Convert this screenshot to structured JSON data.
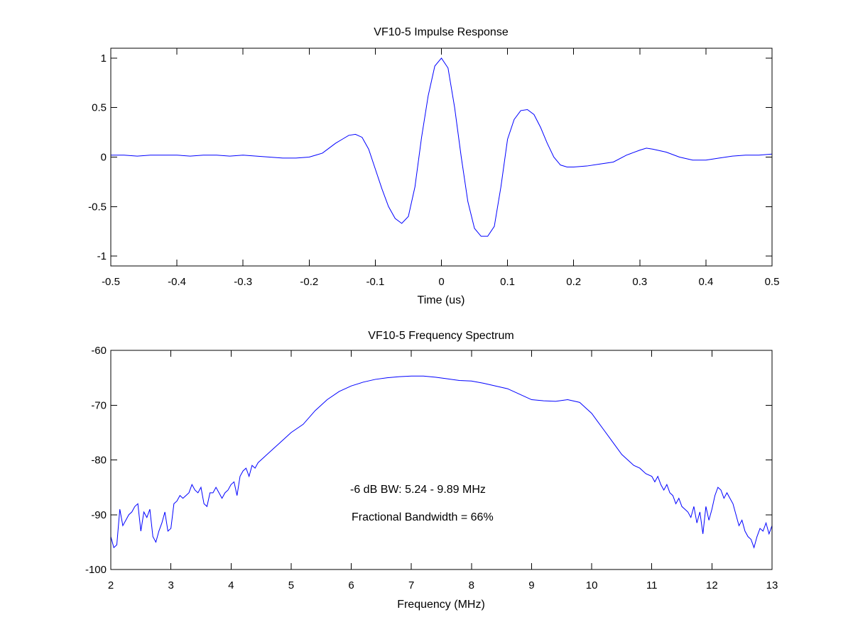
{
  "chart_data": [
    {
      "type": "line",
      "title": "VF10-5 Impulse Response",
      "xlabel": "Time (us)",
      "ylabel": "",
      "xlim": [
        -0.5,
        0.5
      ],
      "ylim": [
        -1.1,
        1.1
      ],
      "xticks": [
        -0.5,
        -0.4,
        -0.3,
        -0.2,
        -0.1,
        0,
        0.1,
        0.2,
        0.3,
        0.4,
        0.5
      ],
      "xtick_labels": [
        "-0.5",
        "-0.4",
        "-0.3",
        "-0.2",
        "-0.1",
        "0",
        "0.1",
        "0.2",
        "0.3",
        "0.4",
        "0.5"
      ],
      "yticks": [
        1,
        0.5,
        0,
        -0.5,
        -1
      ],
      "ytick_labels": [
        "1",
        "0.5",
        "0",
        "-0.5",
        "-1"
      ],
      "grid": false,
      "color": "#0000ff",
      "series": [
        {
          "x": [
            -0.5,
            -0.48,
            -0.46,
            -0.44,
            -0.42,
            -0.4,
            -0.38,
            -0.36,
            -0.34,
            -0.32,
            -0.3,
            -0.28,
            -0.26,
            -0.24,
            -0.22,
            -0.2,
            -0.19,
            -0.18,
            -0.17,
            -0.16,
            -0.15,
            -0.14,
            -0.13,
            -0.12,
            -0.11,
            -0.1,
            -0.09,
            -0.08,
            -0.07,
            -0.06,
            -0.05,
            -0.04,
            -0.03,
            -0.02,
            -0.01,
            0,
            0.01,
            0.02,
            0.03,
            0.04,
            0.05,
            0.06,
            0.07,
            0.08,
            0.09,
            0.1,
            0.11,
            0.12,
            0.13,
            0.14,
            0.15,
            0.16,
            0.17,
            0.18,
            0.19,
            0.2,
            0.22,
            0.24,
            0.26,
            0.28,
            0.3,
            0.31,
            0.32,
            0.34,
            0.36,
            0.38,
            0.4,
            0.42,
            0.44,
            0.46,
            0.48,
            0.5
          ],
          "y": [
            0.02,
            0.02,
            0.01,
            0.02,
            0.02,
            0.02,
            0.01,
            0.02,
            0.02,
            0.01,
            0.02,
            0.01,
            0.0,
            -0.01,
            -0.01,
            0.0,
            0.02,
            0.04,
            0.09,
            0.14,
            0.18,
            0.22,
            0.23,
            0.2,
            0.08,
            -0.12,
            -0.32,
            -0.5,
            -0.62,
            -0.67,
            -0.6,
            -0.3,
            0.2,
            0.62,
            0.92,
            1.0,
            0.9,
            0.5,
            0.0,
            -0.45,
            -0.72,
            -0.8,
            -0.8,
            -0.7,
            -0.3,
            0.18,
            0.38,
            0.47,
            0.48,
            0.43,
            0.3,
            0.14,
            0.0,
            -0.08,
            -0.1,
            -0.1,
            -0.09,
            -0.07,
            -0.05,
            0.02,
            0.07,
            0.09,
            0.08,
            0.05,
            0.0,
            -0.03,
            -0.03,
            -0.01,
            0.01,
            0.02,
            0.02,
            0.03
          ]
        }
      ]
    },
    {
      "type": "line",
      "title": "VF10-5 Frequency Spectrum",
      "xlabel": "Frequency (MHz)",
      "ylabel": "",
      "xlim": [
        2,
        13
      ],
      "ylim": [
        -100,
        -60
      ],
      "xticks": [
        2,
        3,
        4,
        5,
        6,
        7,
        8,
        9,
        10,
        11,
        12,
        13
      ],
      "xtick_labels": [
        "2",
        "3",
        "4",
        "5",
        "6",
        "7",
        "8",
        "9",
        "10",
        "11",
        "12",
        "13"
      ],
      "yticks": [
        -60,
        -70,
        -80,
        -90,
        -100
      ],
      "ytick_labels": [
        "-60",
        "-70",
        "-80",
        "-90",
        "-100"
      ],
      "grid": false,
      "color": "#0000ff",
      "annotations": [
        "-6 dB BW: 5.24 - 9.89 MHz",
        "Fractional Bandwidth = 66%"
      ],
      "series": [
        {
          "x": [
            2.0,
            2.05,
            2.1,
            2.15,
            2.2,
            2.25,
            2.3,
            2.35,
            2.4,
            2.45,
            2.5,
            2.55,
            2.6,
            2.65,
            2.7,
            2.75,
            2.8,
            2.85,
            2.9,
            2.95,
            3.0,
            3.05,
            3.1,
            3.15,
            3.2,
            3.25,
            3.3,
            3.35,
            3.4,
            3.45,
            3.5,
            3.55,
            3.6,
            3.65,
            3.7,
            3.75,
            3.8,
            3.85,
            3.9,
            3.95,
            4.0,
            4.05,
            4.1,
            4.15,
            4.2,
            4.25,
            4.3,
            4.35,
            4.4,
            4.45,
            4.5,
            4.6,
            4.7,
            4.8,
            4.9,
            5.0,
            5.2,
            5.4,
            5.6,
            5.8,
            6.0,
            6.2,
            6.4,
            6.6,
            6.8,
            7.0,
            7.2,
            7.4,
            7.6,
            7.8,
            8.0,
            8.2,
            8.4,
            8.6,
            8.8,
            9.0,
            9.2,
            9.4,
            9.6,
            9.8,
            9.9,
            10.0,
            10.1,
            10.2,
            10.3,
            10.4,
            10.5,
            10.6,
            10.7,
            10.8,
            10.9,
            11.0,
            11.05,
            11.1,
            11.15,
            11.2,
            11.25,
            11.3,
            11.35,
            11.4,
            11.45,
            11.5,
            11.55,
            11.6,
            11.65,
            11.7,
            11.75,
            11.8,
            11.85,
            11.9,
            11.95,
            12.0,
            12.05,
            12.1,
            12.15,
            12.2,
            12.25,
            12.3,
            12.35,
            12.4,
            12.45,
            12.5,
            12.55,
            12.6,
            12.65,
            12.7,
            12.75,
            12.8,
            12.85,
            12.9,
            12.95,
            13.0
          ],
          "y": [
            -94.0,
            -96.0,
            -95.5,
            -89.0,
            -92.0,
            -91.0,
            -90.0,
            -89.5,
            -88.5,
            -88.0,
            -93.0,
            -89.5,
            -90.5,
            -89.0,
            -94.0,
            -95.0,
            -93.0,
            -91.5,
            -89.5,
            -93.0,
            -92.5,
            -88.0,
            -87.5,
            -86.5,
            -87.0,
            -86.5,
            -86.0,
            -84.5,
            -85.5,
            -86.0,
            -85.0,
            -88.0,
            -88.5,
            -86.0,
            -86.0,
            -85.0,
            -86.0,
            -87.0,
            -86.0,
            -85.5,
            -84.5,
            -84.0,
            -86.5,
            -83.0,
            -82.0,
            -81.5,
            -83.0,
            -81.0,
            -81.5,
            -80.5,
            -80.0,
            -79.0,
            -78.0,
            -77.0,
            -76.0,
            -75.0,
            -73.5,
            -71.0,
            -69.0,
            -67.5,
            -66.5,
            -65.8,
            -65.3,
            -65.0,
            -64.8,
            -64.7,
            -64.7,
            -64.9,
            -65.2,
            -65.5,
            -65.6,
            -66.0,
            -66.5,
            -67.0,
            -68.0,
            -69.0,
            -69.2,
            -69.3,
            -69.0,
            -69.5,
            -70.5,
            -71.5,
            -73.0,
            -74.5,
            -76.0,
            -77.5,
            -79.0,
            -80.0,
            -81.0,
            -81.5,
            -82.5,
            -83.0,
            -84.0,
            -83.0,
            -84.5,
            -85.5,
            -84.5,
            -86.0,
            -86.5,
            -88.0,
            -87.0,
            -88.5,
            -89.0,
            -89.5,
            -90.5,
            -88.5,
            -91.5,
            -89.5,
            -93.5,
            -88.5,
            -91.0,
            -89.0,
            -86.5,
            -85.0,
            -85.5,
            -87.0,
            -86.0,
            -87.0,
            -88.0,
            -90.0,
            -92.0,
            -91.0,
            -93.0,
            -94.0,
            -94.5,
            -96.0,
            -94.0,
            -92.5,
            -93.0,
            -91.5,
            -93.5,
            -92.0
          ]
        }
      ]
    }
  ]
}
